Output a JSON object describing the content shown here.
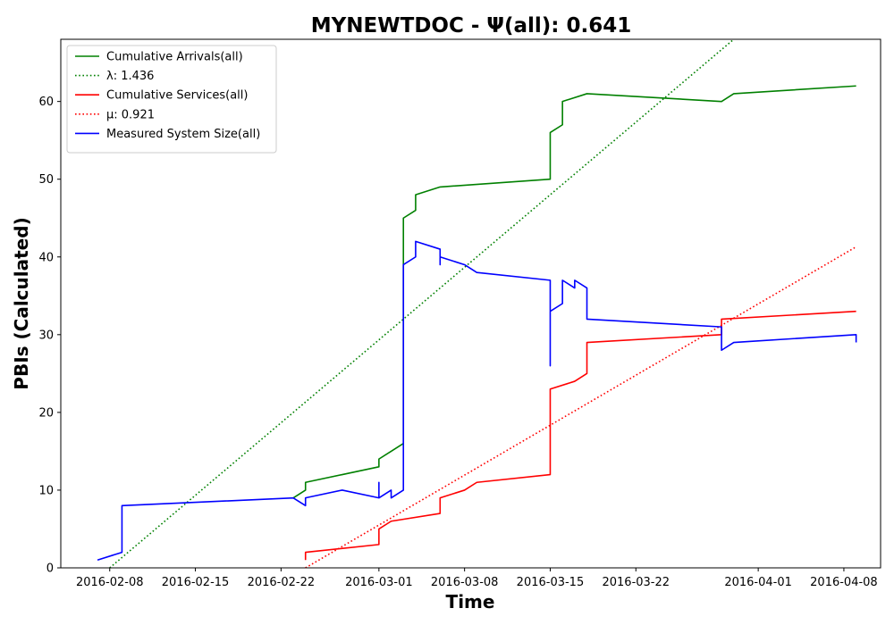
{
  "chart_data": {
    "type": "line",
    "title": "MYNEWTDOC -  Ψ(all): 0.641",
    "xlabel": "Time",
    "ylabel": "PBIs (Calculated)",
    "x_axis_type": "date",
    "xlim": [
      "2016-02-04",
      "2016-04-11"
    ],
    "ylim": [
      0,
      68
    ],
    "x_ticks": [
      "2016-02-08",
      "2016-02-15",
      "2016-02-22",
      "2016-03-01",
      "2016-03-08",
      "2016-03-15",
      "2016-03-22",
      "2016-04-01",
      "2016-04-08"
    ],
    "y_ticks": [
      0,
      10,
      20,
      30,
      40,
      50,
      60
    ],
    "grid": false,
    "legend_position": "top-left",
    "series": [
      {
        "name": "Cumulative Arrivals(all)",
        "style": "solid",
        "color": "#008000",
        "points": [
          [
            "2016-02-23",
            9
          ],
          [
            "2016-02-24",
            10
          ],
          [
            "2016-02-24",
            11
          ],
          [
            "2016-02-27",
            12
          ],
          [
            "2016-03-01",
            13
          ],
          [
            "2016-03-01",
            14
          ],
          [
            "2016-03-02",
            15
          ],
          [
            "2016-03-03",
            16
          ],
          [
            "2016-03-03",
            44
          ],
          [
            "2016-03-03",
            45
          ],
          [
            "2016-03-04",
            46
          ],
          [
            "2016-03-04",
            48
          ],
          [
            "2016-03-06",
            49
          ],
          [
            "2016-03-15",
            50
          ],
          [
            "2016-03-15",
            56
          ],
          [
            "2016-03-16",
            57
          ],
          [
            "2016-03-16",
            60
          ],
          [
            "2016-03-18",
            61
          ],
          [
            "2016-03-29",
            60
          ],
          [
            "2016-03-30",
            61
          ],
          [
            "2016-04-09",
            62
          ]
        ]
      },
      {
        "name": "λ: 1.436",
        "style": "dotted",
        "color": "#008000",
        "points": [
          [
            "2016-02-08",
            0
          ],
          [
            "2016-03-30",
            68
          ]
        ]
      },
      {
        "name": "Cumulative Services(all)",
        "style": "solid",
        "color": "#ff0000",
        "points": [
          [
            "2016-02-24",
            1
          ],
          [
            "2016-02-24",
            2
          ],
          [
            "2016-03-01",
            3
          ],
          [
            "2016-03-01",
            5
          ],
          [
            "2016-03-02",
            6
          ],
          [
            "2016-03-06",
            7
          ],
          [
            "2016-03-06",
            9
          ],
          [
            "2016-03-08",
            10
          ],
          [
            "2016-03-09",
            11
          ],
          [
            "2016-03-15",
            12
          ],
          [
            "2016-03-15",
            23
          ],
          [
            "2016-03-17",
            24
          ],
          [
            "2016-03-18",
            25
          ],
          [
            "2016-03-18",
            29
          ],
          [
            "2016-03-29",
            30
          ],
          [
            "2016-03-29",
            32
          ],
          [
            "2016-04-09",
            33
          ]
        ]
      },
      {
        "name": "μ: 0.921",
        "style": "dotted",
        "color": "#ff0000",
        "points": [
          [
            "2016-02-24",
            0
          ],
          [
            "2016-04-09",
            41.3
          ]
        ]
      },
      {
        "name": "Measured System Size(all)",
        "style": "solid",
        "color": "#0000ff",
        "points": [
          [
            "2016-02-07",
            1
          ],
          [
            "2016-02-09",
            2
          ],
          [
            "2016-02-09",
            8
          ],
          [
            "2016-02-23",
            9
          ],
          [
            "2016-02-24",
            8
          ],
          [
            "2016-02-24",
            9
          ],
          [
            "2016-02-27",
            10
          ],
          [
            "2016-03-01",
            9
          ],
          [
            "2016-03-01",
            11
          ],
          [
            "2016-03-01",
            9
          ],
          [
            "2016-03-02",
            10
          ],
          [
            "2016-03-02",
            9
          ],
          [
            "2016-03-03",
            10
          ],
          [
            "2016-03-03",
            38
          ],
          [
            "2016-03-03",
            39
          ],
          [
            "2016-03-04",
            40
          ],
          [
            "2016-03-04",
            42
          ],
          [
            "2016-03-06",
            41
          ],
          [
            "2016-03-06",
            39
          ],
          [
            "2016-03-06",
            40
          ],
          [
            "2016-03-08",
            39
          ],
          [
            "2016-03-09",
            38
          ],
          [
            "2016-03-15",
            37
          ],
          [
            "2016-03-15",
            26
          ],
          [
            "2016-03-15",
            27
          ],
          [
            "2016-03-15",
            33
          ],
          [
            "2016-03-16",
            34
          ],
          [
            "2016-03-16",
            37
          ],
          [
            "2016-03-17",
            36
          ],
          [
            "2016-03-17",
            37
          ],
          [
            "2016-03-18",
            36
          ],
          [
            "2016-03-18",
            32
          ],
          [
            "2016-03-29",
            31
          ],
          [
            "2016-03-29",
            28
          ],
          [
            "2016-03-30",
            29
          ],
          [
            "2016-04-09",
            30
          ],
          [
            "2016-04-09",
            29
          ]
        ]
      }
    ]
  }
}
